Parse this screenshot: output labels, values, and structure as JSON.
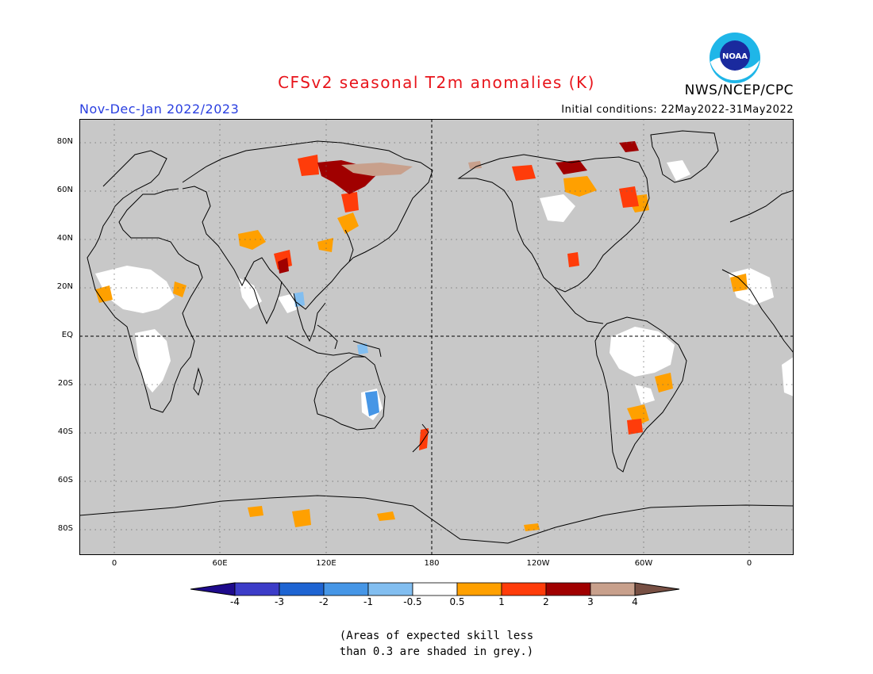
{
  "header": {
    "title": "CFSv2 seasonal T2m anomalies (K)",
    "season": "Nov-Dec-Jan 2022/2023",
    "initial_conditions": "Initial conditions: 22May2022-31May2022",
    "agency": "NWS/NCEP/CPC",
    "logo_text": "NOAA"
  },
  "map": {
    "lat_labels": [
      "80N",
      "60N",
      "40N",
      "20N",
      "EQ",
      "20S",
      "40S",
      "60S",
      "80S"
    ],
    "lon_labels": [
      "0",
      "60E",
      "120E",
      "180",
      "120W",
      "60W",
      "0"
    ],
    "background_color": "#c8c8c8",
    "land_outline_color": "#000000"
  },
  "colorbar": {
    "labels": [
      "-4",
      "-3",
      "-2",
      "-1",
      "-0.5",
      "0.5",
      "1",
      "2",
      "3",
      "4"
    ],
    "colors": [
      "#1e0a8c",
      "#3c3cc8",
      "#1e64d2",
      "#4696e6",
      "#82bef0",
      "#ffffff",
      "#ffa000",
      "#ff3c0a",
      "#a00000",
      "#c8a08c",
      "#785044"
    ]
  },
  "note": {
    "line1": "(Areas of expected skill less",
    "line2": "than 0.3 are shaded in grey.)"
  }
}
